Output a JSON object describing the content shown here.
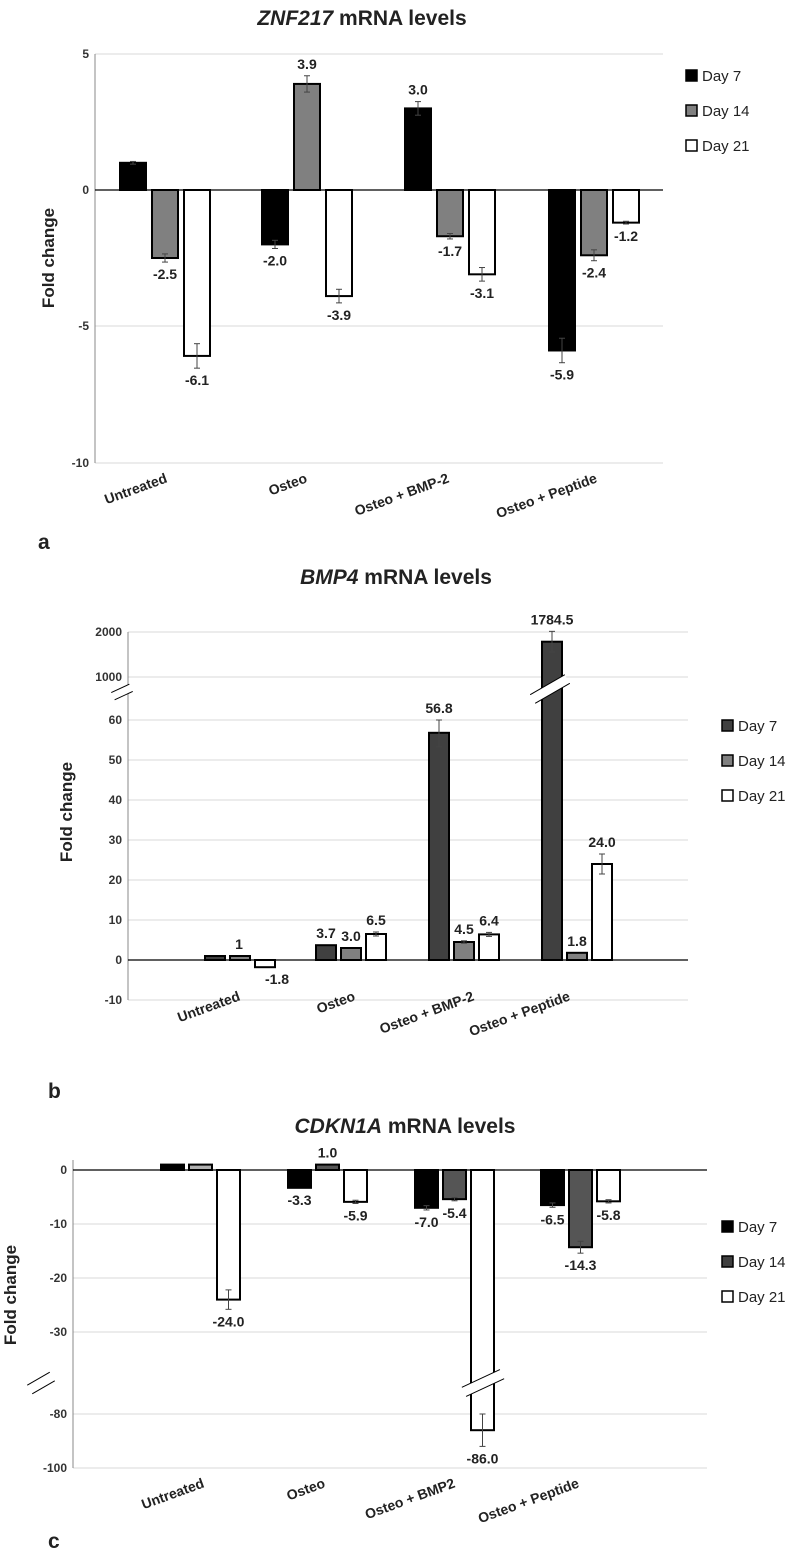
{
  "chart_data": [
    {
      "type": "bar",
      "panel_label": "a",
      "title_gene": "ZNF217",
      "title_rest": " mRNA levels",
      "ylabel": "Fold change",
      "xlabel": "",
      "ylim": [
        -10,
        5
      ],
      "yticks": [
        "5",
        "0",
        "-5",
        "-10"
      ],
      "legend_position": "top-right",
      "categories": [
        "Untreated",
        "Osteo",
        "Osteo + BMP-2",
        "Osteo + Peptide"
      ],
      "series": [
        {
          "name": "Day 7",
          "color": "#000000",
          "values": [
            1.0,
            -2.0,
            3.0,
            -5.9
          ],
          "errors": [
            0.05,
            0.15,
            0.25,
            0.45
          ],
          "labels": [
            "",
            "-2.0",
            "3.0",
            "-5.9"
          ]
        },
        {
          "name": "Day 14",
          "color": "#808080",
          "values": [
            -2.5,
            3.9,
            -1.7,
            -2.4
          ],
          "errors": [
            0.15,
            0.3,
            0.1,
            0.2
          ],
          "labels": [
            "-2.5",
            "3.9",
            "-1.7",
            "-2.4"
          ]
        },
        {
          "name": "Day 21",
          "color": "#ffffff",
          "values": [
            -6.1,
            -3.9,
            -3.1,
            -1.2
          ],
          "errors": [
            0.45,
            0.25,
            0.25,
            0.05
          ],
          "labels": [
            "-6.1",
            "-3.9",
            "-3.1",
            "-1.2"
          ]
        }
      ]
    },
    {
      "type": "bar",
      "panel_label": "b",
      "title_gene": "BMP4",
      "title_rest": " mRNA levels",
      "ylabel": "Fold change",
      "xlabel": "",
      "ylim": [
        -10,
        2000
      ],
      "axis_break": "between 60 and 1000",
      "yticks": [
        "2000",
        "1000",
        "60",
        "50",
        "40",
        "30",
        "20",
        "10",
        "0",
        "-10"
      ],
      "legend_position": "right",
      "categories": [
        "Untreated",
        "Osteo",
        "Osteo + BMP-2",
        "Osteo + Peptide"
      ],
      "series": [
        {
          "name": "Day 7",
          "color": "#404040",
          "values": [
            1,
            3.7,
            56.8,
            1784.5
          ],
          "errors": [
            0,
            0,
            3.5,
            230
          ],
          "labels": [
            "",
            "3.7",
            "56.8",
            "1784.5"
          ]
        },
        {
          "name": "Day 14",
          "color": "#808080",
          "values": [
            1,
            3.0,
            4.5,
            1.8
          ],
          "errors": [
            0,
            0,
            0.3,
            0
          ],
          "labels": [
            "1",
            "3.0",
            "4.5",
            "1.8"
          ]
        },
        {
          "name": "Day 21",
          "color": "#ffffff",
          "values": [
            -1.8,
            6.5,
            6.4,
            24.0
          ],
          "errors": [
            0,
            0.5,
            0.5,
            2.5
          ],
          "labels": [
            "-1.8",
            "6.5",
            "6.4",
            "24.0"
          ]
        }
      ]
    },
    {
      "type": "bar",
      "panel_label": "c",
      "title_gene": "CDKN1A",
      "title_rest": " mRNA levels",
      "ylabel": "Fold change",
      "xlabel": "",
      "ylim": [
        -100,
        0
      ],
      "axis_break": "between -30 and -80",
      "yticks": [
        "0",
        "-10",
        "-20",
        "-30",
        "-80",
        "-100"
      ],
      "legend_position": "right",
      "categories": [
        "Untreated",
        "Osteo",
        "Osteo + BMP2",
        "Osteo + Peptide"
      ],
      "series": [
        {
          "name": "Day 7",
          "color": "#000000",
          "values": [
            1.0,
            -3.3,
            -7.0,
            -6.5
          ],
          "errors": [
            0,
            0,
            0.4,
            0.4
          ],
          "labels": [
            "",
            "-3.3",
            "-7.0",
            "-6.5"
          ]
        },
        {
          "name": "Day 14",
          "color": "#404040",
          "values": [
            1.0,
            1.0,
            -5.4,
            -14.3
          ],
          "errors": [
            0,
            0,
            0.3,
            1.1
          ],
          "labels": [
            "",
            "1.0",
            "-5.4",
            "-14.3"
          ]
        },
        {
          "name": "Day 21",
          "color": "#ffffff",
          "values": [
            -24.0,
            -5.9,
            -86.0,
            -5.8
          ],
          "errors": [
            1.8,
            0.3,
            6.0,
            0.3
          ],
          "labels": [
            "-24.0",
            "-5.9",
            "-86.0",
            "-5.8"
          ]
        }
      ],
      "series_colors_override": [
        [
          "#000000",
          "#b0b0b0",
          "#ffffff"
        ],
        [
          "#000000",
          "#555555",
          "#ffffff"
        ],
        [
          "#000000",
          "#555555",
          "#ffffff"
        ],
        [
          "#000000",
          "#555555",
          "#ffffff"
        ]
      ]
    }
  ]
}
